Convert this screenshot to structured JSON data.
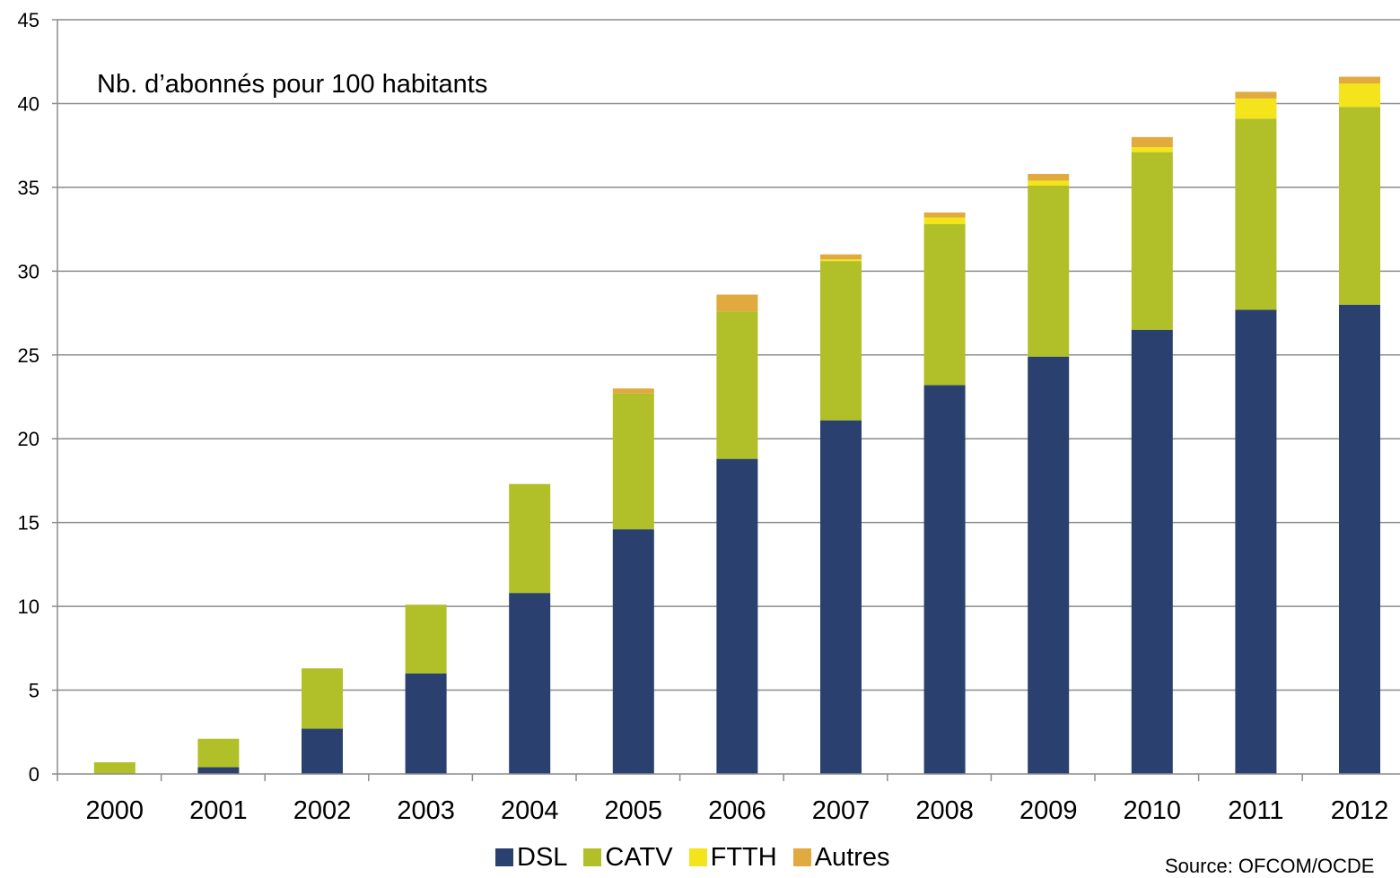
{
  "chart_data": {
    "type": "bar",
    "stacked": true,
    "title": "",
    "annotation": "Nb. d’abonnés pour 100 habitants",
    "xlabel": "",
    "ylabel": "",
    "ylim": [
      0,
      45
    ],
    "yticks": [
      "0",
      "5",
      "10",
      "15",
      "20",
      "25",
      "30",
      "35",
      "40",
      "45"
    ],
    "grid": true,
    "legend_position": "bottom",
    "categories": [
      "2000",
      "2001",
      "2002",
      "2003",
      "2004",
      "2005",
      "2006",
      "2007",
      "2008",
      "2009",
      "2010",
      "2011",
      "2012"
    ],
    "series": [
      {
        "name": "DSL",
        "color": "#2a416f",
        "values": [
          0,
          0.4,
          2.7,
          6.0,
          10.8,
          14.6,
          18.8,
          21.1,
          23.2,
          24.9,
          26.5,
          27.7,
          28.0
        ]
      },
      {
        "name": "CATV",
        "color": "#b1bf28",
        "values": [
          0.7,
          1.7,
          3.6,
          4.1,
          6.5,
          8.1,
          8.8,
          9.5,
          9.6,
          10.2,
          10.6,
          11.4,
          11.8
        ]
      },
      {
        "name": "FTTH",
        "color": "#f3e41c",
        "values": [
          0,
          0,
          0,
          0,
          0,
          0,
          0,
          0.1,
          0.4,
          0.3,
          0.3,
          1.2,
          1.4
        ]
      },
      {
        "name": "Autres",
        "color": "#e0aa3e",
        "values": [
          0,
          0,
          0,
          0,
          0,
          0.3,
          1.0,
          0.3,
          0.3,
          0.4,
          0.6,
          0.4,
          0.4
        ]
      }
    ],
    "source": "Source: OFCOM/OCDE"
  }
}
